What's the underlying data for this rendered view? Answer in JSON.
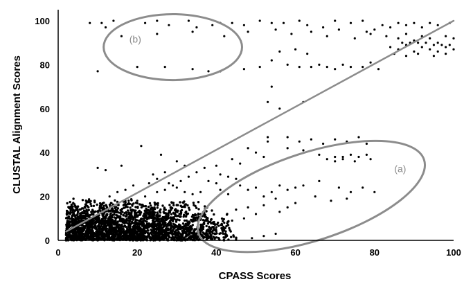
{
  "chart_data": {
    "type": "scatter",
    "title": "",
    "xlabel": "CPASS Scores",
    "ylabel": "CLUSTAL Alignment Scores",
    "xlim": [
      0,
      100
    ],
    "ylim": [
      0,
      100
    ],
    "xticks": [
      "0",
      "20",
      "40",
      "60",
      "80",
      "100"
    ],
    "yticks": [
      "0",
      "20",
      "40",
      "60",
      "80",
      "100"
    ],
    "grid": false,
    "legend": "none",
    "colors": {
      "points": "#000000",
      "reference_line": "#8c8c8c",
      "ellipses": "#8c8c8c"
    },
    "reference_line": {
      "from": [
        2,
        4
      ],
      "to": [
        100,
        100
      ]
    },
    "regions": [
      {
        "label": "(a)",
        "center": [
          64,
          20
        ],
        "rx": 30,
        "ry": 20,
        "angle": 18
      },
      {
        "label": "(b)",
        "center": [
          29,
          88
        ],
        "rx": 17.5,
        "ry": 15
      }
    ],
    "series": [
      {
        "points": [
          [
            8,
            99
          ],
          [
            11,
            99
          ],
          [
            14,
            100
          ],
          [
            22,
            99
          ],
          [
            25,
            100
          ],
          [
            28,
            98
          ],
          [
            33,
            100
          ],
          [
            35,
            97
          ],
          [
            39,
            98
          ],
          [
            41,
            99
          ],
          [
            44,
            99
          ],
          [
            47,
            98
          ],
          [
            51,
            100
          ],
          [
            54,
            99
          ],
          [
            57,
            99
          ],
          [
            61,
            100
          ],
          [
            63,
            98
          ],
          [
            67,
            97
          ],
          [
            70,
            100
          ],
          [
            74,
            99
          ],
          [
            77,
            100
          ],
          [
            12,
            97
          ],
          [
            16,
            93
          ],
          [
            25,
            94
          ],
          [
            34,
            95
          ],
          [
            42,
            93
          ],
          [
            48,
            95
          ],
          [
            55,
            96
          ],
          [
            59,
            94
          ],
          [
            64,
            95
          ],
          [
            68,
            93
          ],
          [
            71,
            96
          ],
          [
            75,
            92
          ],
          [
            79,
            94
          ],
          [
            83,
            93
          ],
          [
            86,
            92
          ],
          [
            88,
            94
          ],
          [
            90,
            91
          ],
          [
            92,
            93
          ],
          [
            94,
            92
          ],
          [
            96,
            90
          ],
          [
            98,
            93
          ],
          [
            100,
            92
          ],
          [
            84,
            88
          ],
          [
            86,
            87
          ],
          [
            88,
            89
          ],
          [
            90,
            86
          ],
          [
            92,
            88
          ],
          [
            94,
            87
          ],
          [
            96,
            86
          ],
          [
            98,
            88
          ],
          [
            100,
            87
          ],
          [
            87,
            90
          ],
          [
            89,
            90
          ],
          [
            91,
            90
          ],
          [
            93,
            90
          ],
          [
            95,
            89
          ],
          [
            97,
            89
          ],
          [
            99,
            89
          ],
          [
            85,
            85
          ],
          [
            88,
            84
          ],
          [
            91,
            85
          ],
          [
            95,
            84
          ],
          [
            98,
            85
          ],
          [
            84,
            97
          ],
          [
            86,
            99
          ],
          [
            88,
            98
          ],
          [
            90,
            99
          ],
          [
            92,
            97
          ],
          [
            94,
            99
          ],
          [
            96,
            98
          ],
          [
            99,
            99
          ],
          [
            80,
            96
          ],
          [
            82,
            98
          ],
          [
            78,
            95
          ],
          [
            56,
            86
          ],
          [
            60,
            87
          ],
          [
            63,
            85
          ],
          [
            54,
            82
          ],
          [
            58,
            80
          ],
          [
            61,
            79
          ],
          [
            64,
            79
          ],
          [
            66,
            80
          ],
          [
            68,
            79
          ],
          [
            70,
            78
          ],
          [
            72,
            80
          ],
          [
            74,
            79
          ],
          [
            77,
            79
          ],
          [
            79,
            81
          ],
          [
            81,
            78
          ],
          [
            10,
            77
          ],
          [
            20,
            79
          ],
          [
            27,
            79
          ],
          [
            34,
            78
          ],
          [
            38,
            77
          ],
          [
            41,
            77
          ],
          [
            47,
            78
          ],
          [
            51,
            79
          ],
          [
            53,
            63
          ],
          [
            56,
            60
          ],
          [
            54,
            70
          ],
          [
            62,
            63
          ],
          [
            53,
            47
          ],
          [
            53,
            45
          ],
          [
            58,
            47
          ],
          [
            61,
            45
          ],
          [
            64,
            46
          ],
          [
            67,
            44
          ],
          [
            70,
            46
          ],
          [
            73,
            45
          ],
          [
            76,
            47
          ],
          [
            78,
            44
          ],
          [
            70,
            38
          ],
          [
            72,
            38
          ],
          [
            74,
            39
          ],
          [
            76,
            38
          ],
          [
            78,
            39
          ],
          [
            68,
            37
          ],
          [
            70,
            36
          ],
          [
            72,
            37
          ],
          [
            75,
            36
          ],
          [
            79,
            37
          ],
          [
            58,
            42
          ],
          [
            62,
            41
          ],
          [
            66,
            39
          ],
          [
            48,
            42
          ],
          [
            50,
            40
          ],
          [
            52,
            38
          ],
          [
            44,
            37
          ],
          [
            46,
            35
          ],
          [
            40,
            34
          ],
          [
            37,
            33
          ],
          [
            35,
            31
          ],
          [
            33,
            29
          ],
          [
            31,
            27
          ],
          [
            29,
            25
          ],
          [
            27,
            23
          ],
          [
            25,
            22
          ],
          [
            22,
            20
          ],
          [
            20,
            18
          ],
          [
            17,
            15
          ],
          [
            15,
            13
          ],
          [
            12,
            11
          ],
          [
            9,
            9
          ],
          [
            6,
            7
          ],
          [
            4,
            5
          ],
          [
            62,
            25
          ],
          [
            66,
            27
          ],
          [
            71,
            24
          ],
          [
            74,
            22
          ],
          [
            77,
            24
          ],
          [
            80,
            22
          ],
          [
            65,
            20
          ],
          [
            69,
            18
          ],
          [
            73,
            19
          ],
          [
            60,
            17
          ],
          [
            55,
            19
          ],
          [
            52,
            16
          ],
          [
            48,
            15
          ],
          [
            45,
            14
          ],
          [
            50,
            12
          ],
          [
            47,
            10
          ],
          [
            44,
            9
          ],
          [
            42,
            8
          ],
          [
            40,
            6
          ],
          [
            38,
            5
          ],
          [
            36,
            4
          ],
          [
            33,
            3
          ],
          [
            52,
            2
          ],
          [
            55,
            3
          ],
          [
            49,
            1
          ],
          [
            56,
            13
          ],
          [
            58,
            15
          ],
          [
            21,
            43
          ],
          [
            26,
            39
          ],
          [
            30,
            36
          ],
          [
            32,
            34
          ],
          [
            10,
            33
          ],
          [
            12,
            32
          ],
          [
            16,
            34
          ],
          [
            24,
            30
          ],
          [
            27,
            31
          ],
          [
            41,
            30
          ],
          [
            43,
            29
          ],
          [
            45,
            28
          ],
          [
            38,
            27
          ],
          [
            40,
            26
          ],
          [
            36,
            22
          ],
          [
            34,
            21
          ],
          [
            41,
            23
          ],
          [
            43,
            21
          ],
          [
            46,
            25
          ],
          [
            48,
            23
          ],
          [
            50,
            24
          ],
          [
            52,
            20
          ],
          [
            54,
            22
          ],
          [
            56,
            25
          ],
          [
            58,
            23
          ],
          [
            60,
            24
          ],
          [
            28,
            26
          ],
          [
            30,
            24
          ],
          [
            32,
            22
          ],
          [
            25,
            28
          ],
          [
            23,
            26
          ],
          [
            19,
            25
          ],
          [
            17,
            23
          ],
          [
            15,
            22
          ],
          [
            13,
            20
          ]
        ]
      }
    ]
  }
}
